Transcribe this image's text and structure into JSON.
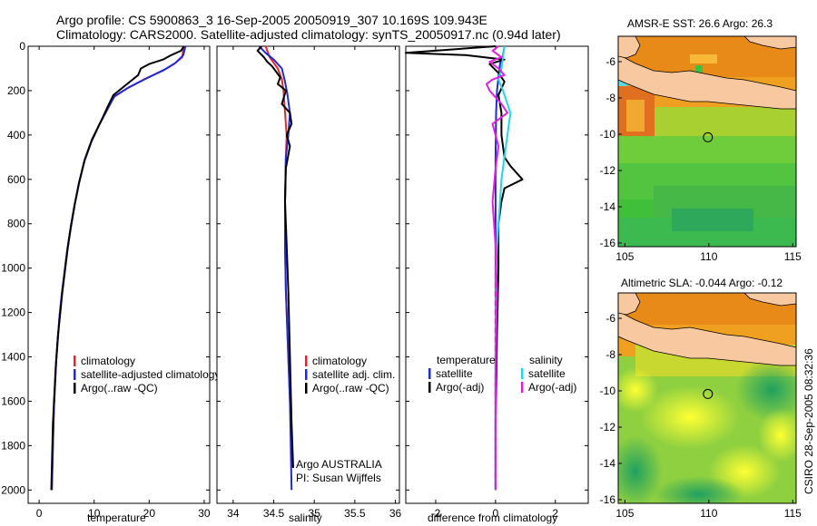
{
  "header": {
    "title_line1": "Argo profile: CS 5900863_3 16-Sep-2005 20050919_307 10.169S 109.943E",
    "title_line2": "Climatology: CARS2000. Satellite-adjusted climatology: synTS_20050917.nc (0.94d later)"
  },
  "side_label": "CSIRO 28-Sep-2005 08:32:36",
  "colors": {
    "climatology": "#e8262a",
    "satellite": "#1f2ad6",
    "argo": "#000000",
    "satellite_salinity": "#22d6e6",
    "argo_salinity": "#e020e0",
    "land": "#f8c8a0"
  },
  "chart_data": [
    {
      "id": "temperature",
      "type": "line",
      "xlabel": "temperature",
      "ylabel": "",
      "xlim": [
        -2,
        31
      ],
      "ylim": [
        2060,
        0
      ],
      "xticks": [
        0,
        10,
        20,
        30
      ],
      "yticks": [
        0,
        200,
        400,
        600,
        800,
        1000,
        1200,
        1400,
        1600,
        1800,
        2000
      ],
      "legend": [
        "climatology",
        "satellite-adjusted climatology",
        "Argo(..raw -QC)"
      ],
      "series": [
        {
          "name": "climatology",
          "color": "red",
          "x": [
            26.3,
            26.0,
            24.5,
            22.5,
            19.0,
            16.0,
            13.5,
            12.5,
            11.0,
            9.5,
            8.2,
            7.2,
            6.4,
            5.7,
            5.1,
            4.6,
            4.1,
            3.7,
            3.4,
            3.1,
            2.9,
            2.7,
            2.5,
            2.3
          ],
          "y": [
            0,
            50,
            80,
            110,
            150,
            190,
            230,
            280,
            350,
            430,
            520,
            620,
            720,
            820,
            920,
            1020,
            1120,
            1220,
            1320,
            1420,
            1520,
            1620,
            1800,
            2000
          ]
        },
        {
          "name": "satellite-adjusted climatology",
          "color": "blue",
          "x": [
            26.6,
            26.2,
            24.8,
            22.8,
            19.5,
            16.3,
            13.7,
            12.5,
            11.0,
            9.5,
            8.2,
            7.2,
            6.4,
            5.7,
            5.1,
            4.6,
            4.1,
            3.7,
            3.4,
            3.1,
            2.9,
            2.7,
            2.5,
            2.3
          ],
          "y": [
            0,
            40,
            75,
            105,
            145,
            185,
            225,
            280,
            350,
            430,
            520,
            620,
            720,
            820,
            920,
            1020,
            1120,
            1220,
            1320,
            1420,
            1520,
            1620,
            1800,
            2000
          ]
        },
        {
          "name": "Argo(..raw -QC)",
          "color": "black",
          "x": [
            26.3,
            25.8,
            24.0,
            22.5,
            20.0,
            18.5,
            18.0,
            16.5,
            15.0,
            13.5,
            12.5,
            11.2,
            9.6,
            8.3,
            7.3,
            6.5,
            5.8,
            5.2,
            4.7,
            4.2,
            3.8,
            3.4,
            3.0,
            2.5,
            2.2
          ],
          "y": [
            0,
            20,
            40,
            60,
            80,
            100,
            130,
            160,
            190,
            220,
            270,
            340,
            420,
            510,
            610,
            710,
            810,
            910,
            1010,
            1110,
            1210,
            1310,
            1450,
            1700,
            2000
          ]
        }
      ]
    },
    {
      "id": "salinity",
      "type": "line",
      "xlabel": "salinity",
      "ylabel": "",
      "xlim": [
        33.8,
        36.05
      ],
      "ylim": [
        2060,
        0
      ],
      "xticks": [
        34,
        34.5,
        35,
        35.5,
        36
      ],
      "xtick_labels": [
        "34",
        "34.5",
        "35",
        "35.5",
        "36"
      ],
      "legend": [
        "climatology",
        "satellite adj. clim.",
        "Argo(..raw -QC)"
      ],
      "annotation": [
        "Argo AUSTRALIA",
        "PI: Susan Wijffels"
      ],
      "series": [
        {
          "name": "climatology",
          "color": "red",
          "x": [
            34.4,
            34.45,
            34.55,
            34.6,
            34.62,
            34.64,
            34.66,
            34.65,
            34.64,
            34.64,
            34.65,
            34.67,
            34.7,
            34.73
          ],
          "y": [
            0,
            50,
            100,
            150,
            200,
            300,
            400,
            500,
            700,
            900,
            1100,
            1300,
            1600,
            1900
          ]
        },
        {
          "name": "satellite adj. clim.",
          "color": "blue",
          "x": [
            34.32,
            34.4,
            34.5,
            34.6,
            34.64,
            34.67,
            34.7,
            34.68,
            34.65,
            34.64,
            34.64,
            34.65,
            34.67,
            34.7,
            34.72
          ],
          "y": [
            0,
            30,
            60,
            100,
            160,
            220,
            300,
            400,
            500,
            700,
            900,
            1100,
            1300,
            1600,
            2000
          ]
        },
        {
          "name": "Argo(..raw -QC)",
          "color": "black",
          "x": [
            34.35,
            34.3,
            34.38,
            34.42,
            34.48,
            34.52,
            34.58,
            34.55,
            34.65,
            34.6,
            34.7,
            34.72,
            34.66,
            34.7,
            34.65,
            34.64,
            34.66,
            34.68,
            34.7,
            34.72,
            34.74
          ],
          "y": [
            0,
            20,
            50,
            70,
            90,
            110,
            140,
            170,
            200,
            260,
            300,
            350,
            400,
            450,
            550,
            700,
            900,
            1100,
            1400,
            1700,
            1900
          ]
        }
      ]
    },
    {
      "id": "difference",
      "type": "line",
      "xlabel": "difference from climatology",
      "ylabel": "",
      "xlim": [
        -3,
        3.1
      ],
      "ylim": [
        2060,
        0
      ],
      "xticks": [
        -2,
        0,
        2
      ],
      "legend_left_title": "temperature",
      "legend_right_title": "salinity",
      "legend_left": [
        "satellite",
        "Argo(-adj)"
      ],
      "legend_right": [
        "satellite",
        "Argo(-adj)"
      ],
      "series": [
        {
          "name": "temperature satellite",
          "color": "blue",
          "x": [
            0.3,
            0.25,
            0.15,
            0.1,
            0.05,
            0.02,
            0.0,
            0.0,
            0.0,
            0.0
          ],
          "y": [
            0,
            40,
            80,
            140,
            200,
            300,
            500,
            800,
            1400,
            2000
          ]
        },
        {
          "name": "temperature Argo(-adj)",
          "color": "black",
          "x": [
            0.0,
            -3.0,
            -1.0,
            0.3,
            -0.2,
            0.1,
            0.3,
            0.1,
            0.2,
            0.2,
            0.3,
            0.5,
            0.9,
            0.3,
            0.2,
            0.1,
            0.1,
            0.05,
            0.0,
            0.0
          ],
          "y": [
            0,
            30,
            40,
            60,
            80,
            120,
            160,
            220,
            300,
            400,
            500,
            540,
            600,
            640,
            700,
            800,
            1000,
            1300,
            1700,
            2000
          ]
        },
        {
          "name": "salinity satellite",
          "color": "cyan",
          "x": [
            0.3,
            0.25,
            0.2,
            0.1,
            0.25,
            0.5,
            0.4,
            0.3,
            0.2,
            0.15,
            0.1,
            0.05,
            0.02,
            0.0,
            0.0
          ],
          "y": [
            0,
            50,
            100,
            150,
            200,
            300,
            400,
            500,
            600,
            700,
            800,
            900,
            1000,
            1400,
            2000
          ]
        },
        {
          "name": "salinity Argo(-adj)",
          "color": "magenta",
          "x": [
            0.1,
            -0.1,
            0.2,
            -0.2,
            0.1,
            0.3,
            -0.1,
            -0.3,
            -0.2,
            0.2,
            0.4,
            -0.1,
            0.1,
            0.0,
            -0.1,
            0.0,
            0.05,
            0.0,
            0.0
          ],
          "y": [
            0,
            20,
            50,
            70,
            100,
            130,
            150,
            170,
            200,
            260,
            300,
            350,
            450,
            550,
            700,
            900,
            1100,
            1500,
            2000
          ]
        }
      ]
    },
    {
      "id": "sst-map",
      "type": "heatmap",
      "title": "AMSR-E SST: 26.6 Argo: 26.3",
      "xlim": [
        104.6,
        115.2
      ],
      "ylim": [
        -16.2,
        -4.6
      ],
      "xticks": [
        105,
        110,
        115
      ],
      "yticks": [
        -6,
        -8,
        -10,
        -12,
        -14,
        -16
      ],
      "marker": {
        "lon": 109.943,
        "lat": -10.169
      }
    },
    {
      "id": "sla-map",
      "type": "heatmap",
      "title": "Altimetric SLA: -0.044 Argo: -0.12",
      "xlim": [
        104.6,
        115.2
      ],
      "ylim": [
        -16.2,
        -4.6
      ],
      "xticks": [
        105,
        110,
        115
      ],
      "yticks": [
        -6,
        -8,
        -10,
        -12,
        -14,
        -16
      ],
      "marker": {
        "lon": 109.943,
        "lat": -10.169
      }
    }
  ]
}
